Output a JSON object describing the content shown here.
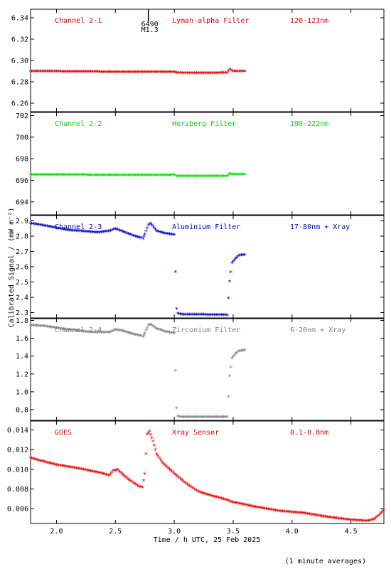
{
  "chart_data": {
    "type": "scatter",
    "title": "",
    "xlabel": "Time / h UTC, 25 Feb 2025",
    "ylabel": "Calibrated Signal  / (mW m⁻²)",
    "footnote": "(1 minute averages)",
    "xlim": [
      1.78,
      4.78
    ],
    "x_ticks": [
      "2.0",
      "2.5",
      "3.0",
      "3.5",
      "4.0",
      "4.5"
    ],
    "x_tick_values": [
      2.0,
      2.5,
      3.0,
      3.5,
      4.0,
      4.5
    ],
    "grid": false,
    "event_marker": {
      "x": 2.78,
      "label_line1": "6490",
      "label_line2": "M1.3"
    },
    "panels": [
      {
        "channel": "Channel 2-1",
        "filter": "Lyman-alpha Filter",
        "band": "120-123nm",
        "color": "#dd0000",
        "ylim": [
          6.252,
          6.348
        ],
        "y_ticks": [
          "6.26",
          "6.28",
          "6.30",
          "6.32",
          "6.34"
        ],
        "y_tick_values": [
          6.26,
          6.28,
          6.3,
          6.32,
          6.34
        ],
        "points": [
          [
            1.78,
            6.2895
          ],
          [
            2.0,
            6.2892
          ],
          [
            2.2,
            6.289
          ],
          [
            2.4,
            6.2888
          ],
          [
            2.6,
            6.2888
          ],
          [
            2.8,
            6.2888
          ],
          [
            2.95,
            6.2887
          ],
          [
            3.0,
            6.2888
          ],
          [
            3.02,
            6.288
          ],
          [
            3.1,
            6.2876
          ],
          [
            3.3,
            6.2876
          ],
          [
            3.45,
            6.288
          ],
          [
            3.47,
            6.2915
          ],
          [
            3.5,
            6.2894
          ],
          [
            3.6,
            6.2894
          ]
        ]
      },
      {
        "channel": "Channel 2-2",
        "filter": "Herzberg Filter",
        "band": "190-222nm",
        "color": "#00dd00",
        "ylim": [
          692.8,
          702.3
        ],
        "y_ticks": [
          "694",
          "696",
          "698",
          "700",
          "702"
        ],
        "y_tick_values": [
          694,
          696,
          698,
          700,
          702
        ],
        "points": [
          [
            1.78,
            696.45
          ],
          [
            2.0,
            696.45
          ],
          [
            2.5,
            696.44
          ],
          [
            2.95,
            696.43
          ],
          [
            3.0,
            696.45
          ],
          [
            3.02,
            696.32
          ],
          [
            3.3,
            696.32
          ],
          [
            3.45,
            696.33
          ],
          [
            3.47,
            696.55
          ],
          [
            3.5,
            696.5
          ],
          [
            3.6,
            696.5
          ]
        ]
      },
      {
        "channel": "Channel 2-3",
        "filter": "Aluminium Filter",
        "band": "17-80nm + Xray",
        "color": "#0000cc",
        "ylim": [
          2.265,
          2.935
        ],
        "y_ticks": [
          "2.3",
          "2.4",
          "2.5",
          "2.6",
          "2.7",
          "2.8",
          "2.9"
        ],
        "y_tick_values": [
          2.3,
          2.4,
          2.5,
          2.6,
          2.7,
          2.8,
          2.9
        ],
        "points": [
          [
            1.78,
            2.88
          ],
          [
            1.9,
            2.865
          ],
          [
            2.1,
            2.835
          ],
          [
            2.2,
            2.83
          ],
          [
            2.35,
            2.82
          ],
          [
            2.45,
            2.83
          ],
          [
            2.5,
            2.845
          ],
          [
            2.55,
            2.83
          ],
          [
            2.65,
            2.8
          ],
          [
            2.72,
            2.785
          ],
          [
            2.735,
            2.78
          ],
          [
            2.75,
            2.81
          ],
          [
            2.78,
            2.87
          ],
          [
            2.8,
            2.88
          ],
          [
            2.85,
            2.83
          ],
          [
            2.92,
            2.815
          ],
          [
            3.0,
            2.805
          ],
          [
            3.02,
            2.32
          ],
          [
            3.03,
            2.29
          ],
          [
            3.05,
            2.285
          ],
          [
            3.3,
            2.282
          ],
          [
            3.45,
            2.28
          ],
          [
            3.47,
            2.5
          ],
          [
            3.49,
            2.62
          ],
          [
            3.52,
            2.65
          ],
          [
            3.55,
            2.67
          ],
          [
            3.6,
            2.675
          ]
        ]
      },
      {
        "channel": "Channel 2-4",
        "filter": "Zirconium Filter",
        "band": "6-20nm + Xray",
        "color": "#808080",
        "ylim": [
          0.68,
          1.82
        ],
        "y_ticks": [
          "0.8",
          "1.0",
          "1.2",
          "1.4",
          "1.6",
          "1.8"
        ],
        "y_tick_values": [
          0.8,
          1.0,
          1.2,
          1.4,
          1.6,
          1.8
        ],
        "points": [
          [
            1.78,
            1.74
          ],
          [
            1.9,
            1.73
          ],
          [
            2.1,
            1.69
          ],
          [
            2.3,
            1.66
          ],
          [
            2.45,
            1.66
          ],
          [
            2.5,
            1.69
          ],
          [
            2.55,
            1.68
          ],
          [
            2.65,
            1.64
          ],
          [
            2.72,
            1.62
          ],
          [
            2.735,
            1.61
          ],
          [
            2.75,
            1.65
          ],
          [
            2.78,
            1.74
          ],
          [
            2.8,
            1.75
          ],
          [
            2.85,
            1.7
          ],
          [
            2.92,
            1.67
          ],
          [
            3.0,
            1.65
          ],
          [
            3.02,
            0.81
          ],
          [
            3.03,
            0.72
          ],
          [
            3.05,
            0.71
          ],
          [
            3.3,
            0.71
          ],
          [
            3.45,
            0.71
          ],
          [
            3.47,
            1.17
          ],
          [
            3.49,
            1.37
          ],
          [
            3.52,
            1.42
          ],
          [
            3.55,
            1.45
          ],
          [
            3.6,
            1.46
          ]
        ]
      },
      {
        "channel": "GOES",
        "filter": "Xray Sensor",
        "band": "0.1-0.8nm",
        "color": "#ee0000",
        "ylim": [
          0.0045,
          0.0149
        ],
        "y_ticks": [
          "0.006",
          "0.008",
          "0.010",
          "0.012",
          "0.014"
        ],
        "y_tick_values": [
          0.006,
          0.008,
          0.01,
          0.012,
          0.014
        ],
        "points": [
          [
            1.78,
            0.0111
          ],
          [
            1.9,
            0.0107
          ],
          [
            2.0,
            0.0104
          ],
          [
            2.2,
            0.01
          ],
          [
            2.4,
            0.0095
          ],
          [
            2.45,
            0.0093
          ],
          [
            2.48,
            0.0098
          ],
          [
            2.52,
            0.0099
          ],
          [
            2.6,
            0.009
          ],
          [
            2.7,
            0.0082
          ],
          [
            2.73,
            0.0081
          ],
          [
            2.75,
            0.0095
          ],
          [
            2.77,
            0.0135
          ],
          [
            2.79,
            0.0138
          ],
          [
            2.82,
            0.0128
          ],
          [
            2.85,
            0.0115
          ],
          [
            2.9,
            0.0106
          ],
          [
            3.0,
            0.0095
          ],
          [
            3.1,
            0.0085
          ],
          [
            3.2,
            0.0077
          ],
          [
            3.3,
            0.0073
          ],
          [
            3.4,
            0.007
          ],
          [
            3.5,
            0.0066
          ],
          [
            3.7,
            0.0061
          ],
          [
            3.9,
            0.0057
          ],
          [
            4.1,
            0.0055
          ],
          [
            4.3,
            0.0051
          ],
          [
            4.5,
            0.0048
          ],
          [
            4.65,
            0.0047
          ],
          [
            4.7,
            0.0049
          ],
          [
            4.74,
            0.0053
          ],
          [
            4.78,
            0.0058
          ]
        ]
      }
    ]
  }
}
